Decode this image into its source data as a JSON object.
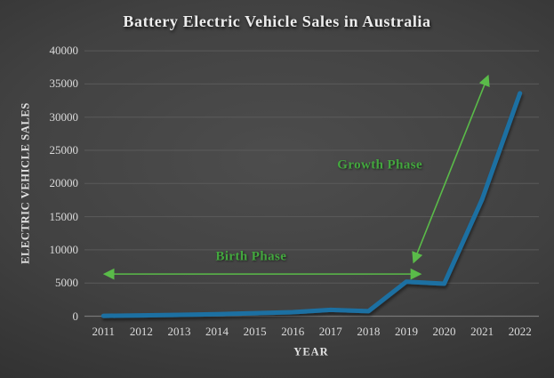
{
  "chart_data": {
    "type": "line",
    "title": "Battery Electric Vehicle Sales in Australia",
    "xlabel": "YEAR",
    "ylabel": "ELECTRIC VEHICLE SALES",
    "categories": [
      "2011",
      "2012",
      "2013",
      "2014",
      "2015",
      "2016",
      "2017",
      "2018",
      "2019",
      "2020",
      "2021",
      "2022"
    ],
    "series": [
      {
        "name": "Battery Electric Vehicle Sales",
        "color": "#1f70a2",
        "values": [
          50,
          120,
          200,
          300,
          450,
          600,
          950,
          750,
          5200,
          4900,
          17600,
          33600
        ]
      }
    ],
    "ylim": [
      0,
      40000
    ],
    "ytick_values": [
      0,
      5000,
      10000,
      15000,
      20000,
      25000,
      30000,
      35000,
      40000
    ],
    "ytick_labels": [
      "0",
      "5000",
      "10000",
      "15000",
      "20000",
      "25000",
      "30000",
      "35000",
      "40000"
    ],
    "grid": true,
    "legend": "none",
    "colors": {
      "background_center": "#4d4d4d",
      "background_edge": "#1e1e1e",
      "gridline": "#5a5a5a",
      "zero_axis": "#787878",
      "text": "#e6e6e6",
      "annotation_text": "#43a73e",
      "annotation_arrow": "#5abb49"
    },
    "annotations": [
      {
        "label": "Birth Phase",
        "shape": "horizontal-double-arrow",
        "from": {
          "year": 2011.05,
          "value": 6350
        },
        "to": {
          "year": 2019.35,
          "value": 6350
        },
        "label_at": {
          "year": 2014.9,
          "value": 8950
        }
      },
      {
        "label": "Growth Phase",
        "shape": "diagonal-double-arrow",
        "from": {
          "year": 2019.2,
          "value": 8250
        },
        "to": {
          "year": 2021.15,
          "value": 36100
        },
        "label_at": {
          "year": 2018.3,
          "value": 22700
        }
      }
    ]
  }
}
